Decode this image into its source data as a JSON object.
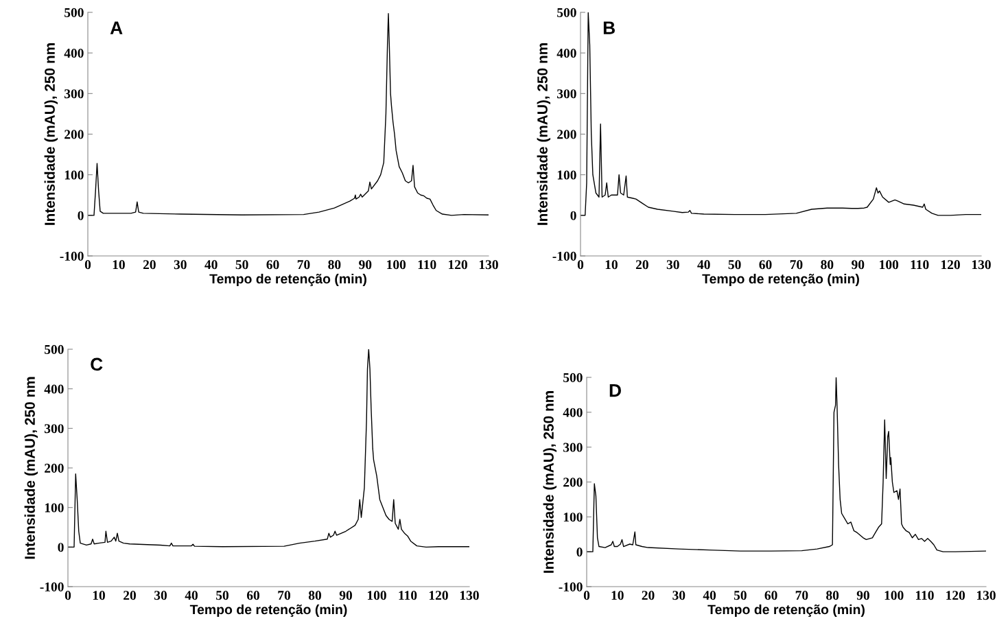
{
  "chart_data": [
    {
      "type": "line",
      "xlabel": "Tempo de retenção (min)",
      "ylabel": "Intensidade (mAU), 250 nm",
      "annotations": [
        "A"
      ],
      "xlim": [
        0,
        130
      ],
      "ylim": [
        -100,
        500
      ],
      "xticks": [
        0,
        10,
        20,
        30,
        40,
        50,
        60,
        70,
        80,
        90,
        100,
        110,
        120,
        130
      ],
      "yticks": [
        -100,
        0,
        100,
        200,
        300,
        400,
        500
      ],
      "grid": false,
      "legend": false,
      "marker": "none",
      "line_style": "solid",
      "series": [
        {
          "color": "#000000",
          "x": [
            0,
            2,
            2.5,
            3,
            3.5,
            4,
            5,
            10,
            14,
            15.5,
            16,
            16.5,
            18,
            30,
            50,
            70,
            75,
            80,
            85,
            86.5,
            86.8,
            87,
            88,
            88.5,
            89,
            91,
            91.5,
            92,
            94,
            95,
            96,
            96.7,
            97.2,
            97.5,
            97.8,
            98.2,
            98.5,
            99,
            99.5,
            100,
            101,
            102,
            103,
            104,
            105,
            105.5,
            106,
            107,
            108,
            109,
            110,
            111,
            112,
            113,
            115,
            118,
            122,
            130
          ],
          "values": [
            0,
            0,
            60,
            128,
            60,
            10,
            5,
            5,
            5,
            8,
            33,
            8,
            5,
            3,
            1,
            2,
            8,
            18,
            35,
            42,
            50,
            40,
            45,
            52,
            45,
            60,
            82,
            65,
            85,
            100,
            130,
            250,
            420,
            497,
            420,
            300,
            270,
            230,
            200,
            160,
            120,
            105,
            85,
            80,
            85,
            123,
            70,
            55,
            50,
            48,
            42,
            40,
            25,
            12,
            3,
            0,
            2,
            1
          ]
        }
      ]
    },
    {
      "type": "line",
      "xlabel": "Tempo de retenção (min)",
      "ylabel": "Intensidade (mAU), 250 nm",
      "annotations": [
        "B"
      ],
      "xlim": [
        0,
        130
      ],
      "ylim": [
        -100,
        500
      ],
      "xticks": [
        0,
        10,
        20,
        30,
        40,
        50,
        60,
        70,
        80,
        90,
        100,
        110,
        120,
        130
      ],
      "yticks": [
        -100,
        0,
        100,
        200,
        300,
        400,
        500
      ],
      "grid": false,
      "legend": false,
      "marker": "none",
      "line_style": "solid",
      "series": [
        {
          "color": "#000000",
          "x": [
            0,
            1.5,
            2,
            2.5,
            3,
            3.5,
            4,
            5,
            6,
            6.5,
            7,
            8,
            8.5,
            9,
            10,
            12,
            12.5,
            13,
            14,
            14.8,
            15.2,
            17,
            18,
            20,
            22,
            25,
            30,
            33,
            35,
            35.5,
            36,
            40,
            50,
            60,
            70,
            75,
            80,
            85,
            88,
            90,
            92,
            93,
            95,
            96,
            96.5,
            97,
            98,
            100,
            102,
            103,
            105,
            108,
            111,
            111.5,
            112,
            114,
            116,
            120,
            125,
            130
          ],
          "values": [
            0,
            0,
            80,
            500,
            420,
            200,
            100,
            55,
            45,
            225,
            45,
            50,
            80,
            45,
            50,
            50,
            100,
            55,
            50,
            97,
            45,
            42,
            40,
            30,
            20,
            15,
            10,
            7,
            8,
            12,
            5,
            3,
            2,
            2,
            5,
            15,
            18,
            18,
            17,
            17,
            18,
            20,
            40,
            68,
            55,
            60,
            45,
            32,
            38,
            35,
            28,
            25,
            20,
            28,
            15,
            5,
            0,
            0,
            2,
            2
          ]
        }
      ]
    },
    {
      "type": "line",
      "xlabel": "Tempo de retenção (min)",
      "ylabel": "Intensidade (mAU), 250 nm",
      "annotations": [
        "C"
      ],
      "xlim": [
        0,
        130
      ],
      "ylim": [
        -100,
        500
      ],
      "xticks": [
        0,
        10,
        20,
        30,
        40,
        50,
        60,
        70,
        80,
        90,
        100,
        110,
        120,
        130
      ],
      "yticks": [
        -100,
        0,
        100,
        200,
        300,
        400,
        500
      ],
      "grid": false,
      "legend": false,
      "marker": "none",
      "line_style": "solid",
      "series": [
        {
          "color": "#000000",
          "x": [
            0,
            2,
            2.5,
            3,
            3.5,
            4,
            6,
            7.5,
            8,
            8.5,
            10,
            12,
            12.3,
            12.8,
            14,
            15,
            15.5,
            16,
            16.5,
            18,
            20,
            30,
            33,
            33.5,
            34,
            40,
            40.5,
            41,
            50,
            70,
            75,
            80,
            84,
            84.5,
            85,
            86,
            86.5,
            87,
            90,
            93,
            94,
            94.5,
            95,
            96,
            96.7,
            97,
            97.4,
            97.8,
            98.2,
            98.7,
            99,
            100,
            101,
            102,
            103,
            104,
            105,
            105.5,
            106,
            107,
            107.5,
            108,
            109,
            110,
            111,
            113,
            116,
            120,
            130
          ],
          "values": [
            0,
            0,
            185,
            120,
            40,
            10,
            5,
            8,
            20,
            8,
            10,
            12,
            40,
            12,
            15,
            25,
            15,
            35,
            15,
            10,
            8,
            5,
            3,
            10,
            3,
            3,
            7,
            2,
            1,
            2,
            10,
            15,
            20,
            35,
            25,
            30,
            40,
            30,
            40,
            55,
            70,
            120,
            75,
            150,
            320,
            450,
            500,
            450,
            350,
            250,
            220,
            180,
            120,
            100,
            80,
            70,
            65,
            120,
            60,
            45,
            70,
            45,
            35,
            28,
            15,
            3,
            0,
            1,
            1
          ]
        }
      ]
    },
    {
      "type": "line",
      "xlabel": "Tempo de retenção (min)",
      "ylabel": "Intensidade (mAU), 250 nm",
      "annotations": [
        "D"
      ],
      "xlim": [
        0,
        130
      ],
      "ylim": [
        -100,
        500
      ],
      "xticks": [
        0,
        10,
        20,
        30,
        40,
        50,
        60,
        70,
        80,
        90,
        100,
        110,
        120,
        130
      ],
      "yticks": [
        -100,
        0,
        100,
        200,
        300,
        400,
        500
      ],
      "grid": false,
      "legend": false,
      "marker": "none",
      "line_style": "solid",
      "series": [
        {
          "color": "#000000",
          "x": [
            0,
            2,
            2.5,
            3,
            3.5,
            4,
            6,
            8,
            8.5,
            9,
            10,
            11,
            11.5,
            12,
            14,
            15,
            15.7,
            16,
            18,
            20,
            30,
            40,
            50,
            60,
            70,
            75,
            79,
            80,
            80.5,
            81,
            81.2,
            81.5,
            82,
            82.5,
            83,
            84,
            85,
            86,
            87,
            88,
            90,
            91,
            93,
            94,
            95,
            96,
            96.5,
            97,
            97.5,
            98,
            98.3,
            98.8,
            99,
            99.5,
            100,
            101,
            101.5,
            102,
            102.5,
            103,
            104,
            105,
            106,
            107,
            108,
            109,
            110,
            111,
            112,
            113,
            114,
            116,
            120,
            130
          ],
          "values": [
            0,
            0,
            195,
            160,
            40,
            15,
            12,
            20,
            30,
            15,
            15,
            22,
            35,
            15,
            22,
            20,
            57,
            20,
            15,
            12,
            8,
            5,
            2,
            2,
            3,
            8,
            15,
            20,
            400,
            420,
            500,
            420,
            250,
            150,
            110,
            95,
            80,
            85,
            60,
            55,
            40,
            35,
            40,
            55,
            70,
            80,
            200,
            378,
            210,
            330,
            345,
            250,
            270,
            200,
            170,
            175,
            150,
            180,
            80,
            70,
            60,
            55,
            40,
            50,
            35,
            38,
            30,
            38,
            30,
            20,
            5,
            0,
            0,
            2
          ]
        }
      ]
    }
  ]
}
